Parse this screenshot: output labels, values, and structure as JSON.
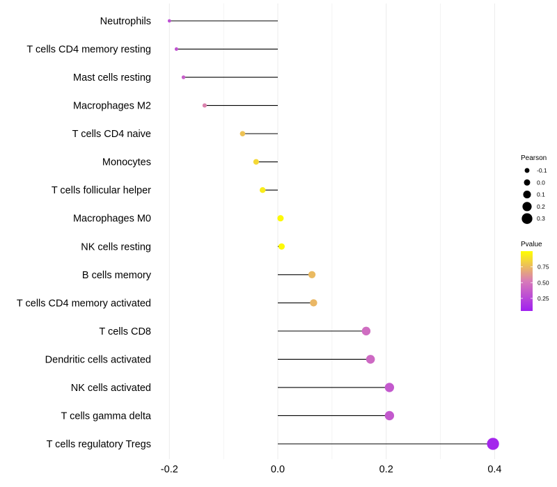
{
  "chart_data": {
    "type": "lollipop",
    "title": "",
    "xlabel": "",
    "ylabel": "",
    "xlim": [
      -0.2,
      0.4
    ],
    "xticks": [
      -0.2,
      0.0,
      0.2,
      0.4
    ],
    "xtick_labels": [
      "-0.2",
      "0.0",
      "0.2",
      "0.4"
    ],
    "baseline": 0.0,
    "grid": true,
    "categories": [
      "Neutrophils",
      "T cells CD4 memory resting",
      "Mast cells resting",
      "Macrophages M2",
      "T cells CD4 naive",
      "Monocytes",
      "T cells follicular helper",
      "Macrophages M0",
      "NK cells resting",
      "B cells memory",
      "T cells CD4 memory activated",
      "T cells CD8",
      "Dendritic cells activated",
      "NK cells activated",
      "T cells gamma delta",
      "T cells regulatory  Tregs"
    ],
    "pearson": [
      -0.2,
      -0.187,
      -0.174,
      -0.135,
      -0.065,
      -0.04,
      -0.028,
      0.005,
      0.007,
      0.063,
      0.066,
      0.163,
      0.171,
      0.206,
      0.206,
      0.397
    ],
    "pvalue": [
      0.3,
      0.32,
      0.38,
      0.55,
      0.78,
      0.86,
      0.93,
      0.98,
      0.98,
      0.75,
      0.74,
      0.45,
      0.43,
      0.35,
      0.35,
      0.08
    ],
    "legend_size": {
      "title": "Pearson",
      "labels": [
        "-0.1",
        "0.0",
        "0.1",
        "0.2",
        "0.3"
      ],
      "values": [
        -0.1,
        0.0,
        0.1,
        0.2,
        0.3
      ]
    },
    "legend_color": {
      "title": "Pvalue",
      "labels": [
        "0.75",
        "0.50",
        "0.25"
      ],
      "values": [
        0.75,
        0.5,
        0.25
      ],
      "range": [
        0.05,
        1.0
      ],
      "low_color": "#a020f0",
      "mid_color": "#d87bb8",
      "high_color": "#ffff00"
    },
    "legend_position": "right",
    "colors": {
      "stem": "#000000",
      "grid": "#ebebeb"
    }
  }
}
